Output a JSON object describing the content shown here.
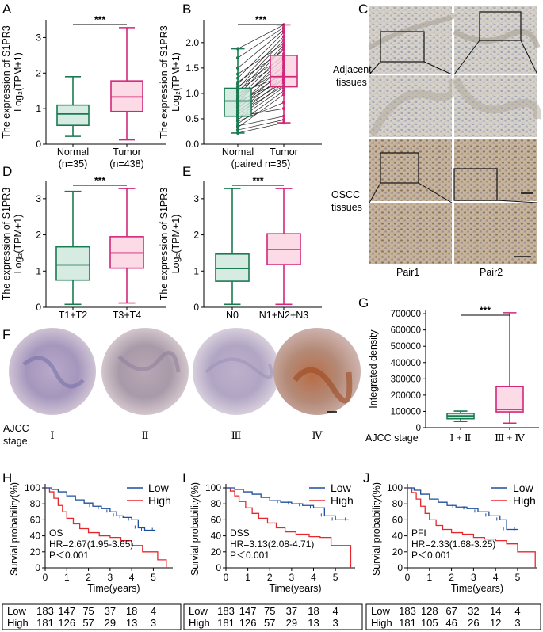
{
  "figure": {
    "panel_letters": [
      "A",
      "B",
      "C",
      "D",
      "E",
      "F",
      "G",
      "H",
      "I",
      "J"
    ],
    "c_labels": {
      "adjacent_l1": "Adjacent",
      "adjacent_l2": "tissues",
      "oscc_l1": "OSCC",
      "oscc_l2": "tissues",
      "pair1": "Pair1",
      "pair2": "Pair2"
    },
    "f_labels": {
      "ajcc_l1": "AJCC",
      "ajcc_l2": "stage",
      "stages": [
        "Ⅰ",
        "Ⅱ",
        "Ⅲ",
        "Ⅳ"
      ]
    },
    "colors": {
      "green": "#1a7a52",
      "green_fill": "#cfe8dc",
      "pink": "#d1287a",
      "pink_fill": "#fbd3e2",
      "low": "#1f4e9e",
      "high": "#e8272d"
    }
  },
  "chart_data": [
    {
      "id": "A",
      "type": "box",
      "ylabel": "The expression of S1PR3",
      "ylabel2": "Log₂(TPM+1)",
      "yticks": [
        0,
        1,
        2,
        3
      ],
      "ylim": [
        0,
        3.5
      ],
      "significance": "***",
      "categories": [
        {
          "label": "Normal",
          "sublabel": "(n=35)",
          "color": "green",
          "min": 0.22,
          "q1": 0.53,
          "median": 0.85,
          "q3": 1.1,
          "max": 1.9
        },
        {
          "label": "Tumor",
          "sublabel": "(n=438)",
          "color": "pink",
          "min": 0.12,
          "q1": 0.92,
          "median": 1.33,
          "q3": 1.78,
          "max": 3.28
        }
      ]
    },
    {
      "id": "B",
      "type": "paired-box",
      "ylabel": "The expression of S1PR3",
      "ylabel2": "Log₂(TPM+1)",
      "yticks": [
        0.0,
        0.5,
        1.0,
        1.5,
        2.0
      ],
      "ylim": [
        0,
        2.45
      ],
      "significance": "***",
      "xlabel": "(paired n=35)",
      "categories": [
        {
          "label": "Normal",
          "color": "green",
          "min": 0.22,
          "q1": 0.55,
          "median": 0.85,
          "q3": 1.1,
          "max": 1.88
        },
        {
          "label": "Tumor",
          "color": "pink",
          "min": 0.42,
          "q1": 1.13,
          "median": 1.33,
          "q3": 1.75,
          "max": 2.35
        }
      ],
      "pairs": [
        [
          0.22,
          0.42
        ],
        [
          0.28,
          0.48
        ],
        [
          0.33,
          0.98
        ],
        [
          0.36,
          0.55
        ],
        [
          0.4,
          1.05
        ],
        [
          0.45,
          0.82
        ],
        [
          0.48,
          1.12
        ],
        [
          0.52,
          1.2
        ],
        [
          0.55,
          0.7
        ],
        [
          0.58,
          1.28
        ],
        [
          0.6,
          1.15
        ],
        [
          0.63,
          1.38
        ],
        [
          0.66,
          1.22
        ],
        [
          0.7,
          1.45
        ],
        [
          0.73,
          1.3
        ],
        [
          0.76,
          1.55
        ],
        [
          0.8,
          1.4
        ],
        [
          0.83,
          1.7
        ],
        [
          0.85,
          1.25
        ],
        [
          0.88,
          1.6
        ],
        [
          0.9,
          1.78
        ],
        [
          0.93,
          1.5
        ],
        [
          0.96,
          1.9
        ],
        [
          1.0,
          1.35
        ],
        [
          1.03,
          1.95
        ],
        [
          1.06,
          1.65
        ],
        [
          1.1,
          2.05
        ],
        [
          1.13,
          1.72
        ],
        [
          1.18,
          2.12
        ],
        [
          1.22,
          1.85
        ],
        [
          1.3,
          2.2
        ],
        [
          1.38,
          1.98
        ],
        [
          1.5,
          2.25
        ],
        [
          1.7,
          2.3
        ],
        [
          1.88,
          2.35
        ]
      ]
    },
    {
      "id": "D",
      "type": "box",
      "ylabel": "The expression of S1PR3",
      "ylabel2": "Log₂(TPM+1)",
      "yticks": [
        0,
        1,
        2,
        3
      ],
      "ylim": [
        0,
        3.5
      ],
      "significance": "***",
      "categories": [
        {
          "label": "T1+T2",
          "color": "green",
          "min": 0.08,
          "q1": 0.75,
          "median": 1.17,
          "q3": 1.67,
          "max": 3.2
        },
        {
          "label": "T3+T4",
          "color": "pink",
          "min": 0.12,
          "q1": 1.08,
          "median": 1.5,
          "q3": 1.95,
          "max": 3.28
        }
      ]
    },
    {
      "id": "E",
      "type": "box",
      "ylabel": "The expression of S1PR3",
      "ylabel2": "Log₂(TPM+1)",
      "yticks": [
        0,
        1,
        2,
        3
      ],
      "ylim": [
        0,
        3.5
      ],
      "significance": "***",
      "categories": [
        {
          "label": "N0",
          "color": "green",
          "min": 0.08,
          "q1": 0.72,
          "median": 1.07,
          "q3": 1.47,
          "max": 3.28
        },
        {
          "label": "N1+N2+N3",
          "color": "pink",
          "min": 0.08,
          "q1": 1.18,
          "median": 1.6,
          "q3": 2.03,
          "max": 3.28
        }
      ]
    },
    {
      "id": "G",
      "type": "box",
      "ylabel": "Integrated density",
      "xprefix": "AJCC stage",
      "yticks": [
        0,
        100000,
        200000,
        300000,
        400000,
        500000,
        600000,
        700000
      ],
      "ylim": [
        0,
        720000
      ],
      "significance": "***",
      "categories": [
        {
          "label": "Ⅰ + Ⅱ",
          "color": "green",
          "min": 38000,
          "q1": 55000,
          "median": 72000,
          "q3": 88000,
          "max": 102000
        },
        {
          "label": "Ⅲ + Ⅳ",
          "color": "pink",
          "min": 28000,
          "q1": 97000,
          "median": 112000,
          "q3": 252000,
          "max": 706000
        }
      ]
    },
    {
      "id": "H",
      "type": "km",
      "ylabel": "Survial probability(%)",
      "xlabel": "Time(years)",
      "xticks": [
        0,
        1,
        2,
        3,
        4,
        5
      ],
      "yticks": [
        0,
        20,
        40,
        60,
        80,
        100
      ],
      "xlim": [
        0,
        5.9
      ],
      "legend": [
        "Low",
        "High"
      ],
      "ann": [
        "OS",
        "HR=2.67(1.95-3.65)",
        "P＜0.001"
      ],
      "low": [
        [
          0,
          100
        ],
        [
          0.3,
          98
        ],
        [
          0.6,
          95
        ],
        [
          1.0,
          90
        ],
        [
          1.4,
          85
        ],
        [
          1.8,
          81
        ],
        [
          2.2,
          77
        ],
        [
          2.6,
          74
        ],
        [
          3.0,
          70
        ],
        [
          3.3,
          65
        ],
        [
          3.6,
          63
        ],
        [
          4.0,
          60
        ],
        [
          4.3,
          50
        ],
        [
          4.6,
          47
        ],
        [
          5.1,
          47
        ]
      ],
      "high": [
        [
          0,
          100
        ],
        [
          0.2,
          95
        ],
        [
          0.4,
          87
        ],
        [
          0.6,
          78
        ],
        [
          0.8,
          70
        ],
        [
          1.0,
          62
        ],
        [
          1.3,
          55
        ],
        [
          1.6,
          49
        ],
        [
          2.0,
          44
        ],
        [
          2.5,
          40
        ],
        [
          3.0,
          38
        ],
        [
          3.5,
          34
        ],
        [
          4.0,
          28
        ],
        [
          4.5,
          20
        ],
        [
          5.2,
          10
        ],
        [
          5.6,
          0
        ]
      ],
      "risk_table": {
        "Low": [
          183,
          147,
          75,
          37,
          18,
          4
        ],
        "High": [
          181,
          126,
          57,
          29,
          13,
          3
        ]
      }
    },
    {
      "id": "I",
      "type": "km",
      "ylabel": "Survial probability(%)",
      "xlabel": "Time(years)",
      "xticks": [
        0,
        1,
        2,
        3,
        4,
        5
      ],
      "yticks": [
        0,
        20,
        40,
        60,
        80,
        100
      ],
      "xlim": [
        0,
        5.9
      ],
      "legend": [
        "Low",
        "High"
      ],
      "ann": [
        "DSS",
        "HR=3.13(2.08-4.71)",
        "P＜0.001"
      ],
      "low": [
        [
          0,
          100
        ],
        [
          0.4,
          98
        ],
        [
          0.8,
          95
        ],
        [
          1.2,
          92
        ],
        [
          1.6,
          88
        ],
        [
          2.0,
          84
        ],
        [
          2.5,
          82
        ],
        [
          3.0,
          80
        ],
        [
          3.5,
          78
        ],
        [
          4.0,
          75
        ],
        [
          4.5,
          65
        ],
        [
          5.0,
          60
        ],
        [
          5.6,
          60
        ]
      ],
      "high": [
        [
          0,
          100
        ],
        [
          0.2,
          96
        ],
        [
          0.4,
          90
        ],
        [
          0.6,
          83
        ],
        [
          0.9,
          75
        ],
        [
          1.2,
          68
        ],
        [
          1.5,
          62
        ],
        [
          1.9,
          56
        ],
        [
          2.3,
          50
        ],
        [
          2.7,
          45
        ],
        [
          3.2,
          42
        ],
        [
          3.8,
          39
        ],
        [
          4.3,
          38
        ],
        [
          4.8,
          28
        ],
        [
          5.5,
          28
        ],
        [
          5.7,
          0
        ]
      ],
      "risk_table": {
        "Low": [
          183,
          147,
          75,
          37,
          18,
          4
        ],
        "High": [
          181,
          126,
          57,
          29,
          13,
          3
        ]
      }
    },
    {
      "id": "J",
      "type": "km",
      "ylabel": "Survial probability(%)",
      "xlabel": "Time(years)",
      "xticks": [
        0,
        1,
        2,
        3,
        4,
        5
      ],
      "yticks": [
        0,
        20,
        40,
        60,
        80,
        100
      ],
      "xlim": [
        0,
        5.9
      ],
      "legend": [
        "Low",
        "High"
      ],
      "ann": [
        "PFI",
        "HR=2.33(1.68-3.25)",
        "P＜0.001"
      ],
      "low": [
        [
          0,
          100
        ],
        [
          0.3,
          97
        ],
        [
          0.6,
          92
        ],
        [
          1.0,
          86
        ],
        [
          1.4,
          82
        ],
        [
          1.8,
          78
        ],
        [
          2.2,
          76
        ],
        [
          2.7,
          74
        ],
        [
          3.2,
          70
        ],
        [
          3.7,
          65
        ],
        [
          4.2,
          60
        ],
        [
          4.5,
          48
        ],
        [
          5.0,
          48
        ]
      ],
      "high": [
        [
          0,
          100
        ],
        [
          0.2,
          94
        ],
        [
          0.4,
          86
        ],
        [
          0.6,
          77
        ],
        [
          0.8,
          68
        ],
        [
          1.0,
          60
        ],
        [
          1.3,
          53
        ],
        [
          1.6,
          48
        ],
        [
          2.0,
          44
        ],
        [
          2.5,
          42
        ],
        [
          3.0,
          38
        ],
        [
          3.5,
          36
        ],
        [
          4.0,
          34
        ],
        [
          4.5,
          30
        ],
        [
          5.0,
          20
        ],
        [
          5.5,
          20
        ],
        [
          5.8,
          0
        ]
      ],
      "risk_table": {
        "Low": [
          183,
          128,
          67,
          32,
          14,
          4
        ],
        "High": [
          181,
          105,
          46,
          26,
          12,
          3
        ]
      }
    }
  ]
}
